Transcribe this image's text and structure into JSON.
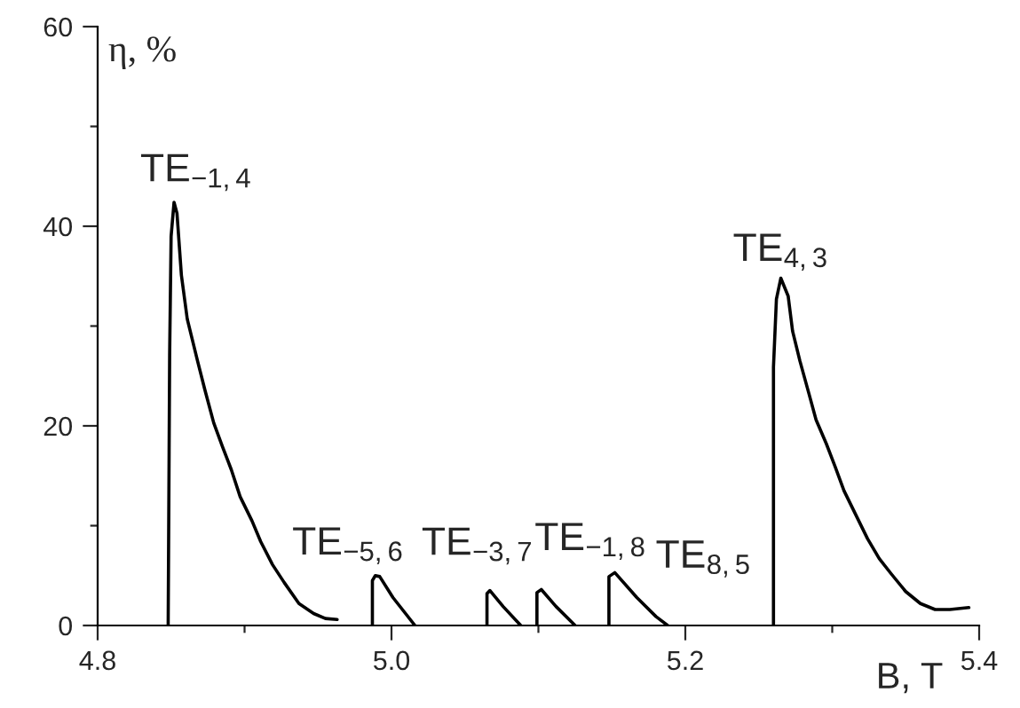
{
  "chart_data": {
    "type": "line",
    "xlabel": "B, T",
    "ylabel": "η, %",
    "xlim": [
      4.8,
      5.4
    ],
    "ylim": [
      0,
      60
    ],
    "xticks": [
      {
        "value": 4.8,
        "label": "4.8"
      },
      {
        "value": 4.9,
        "label": null
      },
      {
        "value": 5.0,
        "label": "5.0"
      },
      {
        "value": 5.1,
        "label": null
      },
      {
        "value": 5.2,
        "label": "5.2"
      },
      {
        "value": 5.3,
        "label": null
      },
      {
        "value": 5.4,
        "label": "5.4"
      }
    ],
    "yticks": [
      0,
      {
        "value": 10,
        "label": null
      },
      20,
      {
        "value": 30,
        "label": null
      },
      40,
      {
        "value": 50,
        "label": null
      },
      60
    ],
    "series": [
      {
        "color": "#000000",
        "x": [
          4.848,
          4.849,
          4.85,
          4.852,
          4.854,
          4.857,
          4.861,
          4.868,
          4.873,
          4.879,
          4.885,
          4.891,
          4.897,
          4.905,
          4.911,
          4.919,
          4.927,
          4.937,
          4.947,
          4.955,
          4.963
        ],
        "values": [
          0,
          27.1,
          39.0,
          42.4,
          41.3,
          35.1,
          30.7,
          26.5,
          23.6,
          20.3,
          17.9,
          15.6,
          12.9,
          10.5,
          8.4,
          6.1,
          4.3,
          2.2,
          1.2,
          0.7,
          0.6
        ]
      },
      {
        "color": "#000000",
        "x": [
          4.987,
          4.987,
          4.989,
          4.992,
          5.001,
          5.016
        ],
        "values": [
          0,
          4.5,
          5.0,
          4.9,
          2.8,
          0
        ]
      },
      {
        "color": "#000000",
        "x": [
          5.065,
          5.065,
          5.067,
          5.076,
          5.088
        ],
        "values": [
          0,
          3.2,
          3.5,
          1.9,
          0
        ]
      },
      {
        "color": "#000000",
        "x": [
          5.099,
          5.099,
          5.102,
          5.112,
          5.125
        ],
        "values": [
          0,
          3.3,
          3.6,
          1.9,
          0
        ]
      },
      {
        "color": "#000000",
        "x": [
          5.148,
          5.148,
          5.152,
          5.167,
          5.18,
          5.188
        ],
        "values": [
          0,
          4.9,
          5.3,
          2.8,
          0.9,
          0
        ]
      },
      {
        "color": "#000000",
        "x": [
          5.26,
          5.26,
          5.262,
          5.265,
          5.27,
          5.273,
          5.278,
          5.284,
          5.289,
          5.296,
          5.302,
          5.308,
          5.316,
          5.324,
          5.332,
          5.34,
          5.35,
          5.36,
          5.37,
          5.38,
          5.393
        ],
        "values": [
          0,
          25.9,
          32.7,
          34.8,
          33.0,
          29.5,
          26.5,
          23.3,
          20.6,
          18.2,
          15.9,
          13.5,
          11.1,
          8.7,
          6.7,
          5.2,
          3.4,
          2.2,
          1.6,
          1.6,
          1.8
        ]
      }
    ],
    "annotations": [
      {
        "text": "TE$_{−1,4}$",
        "x": 4.852,
        "y": 42.4
      },
      {
        "text": "TE$_{−5,6}$",
        "x": 4.989,
        "y": 5.0
      },
      {
        "text": "TE$_{−3,7}$",
        "x": 5.067,
        "y": 3.5
      },
      {
        "text": "TE$_{−1,8}$",
        "x": 5.102,
        "y": 3.6
      },
      {
        "text": "TE$_{8,5}$",
        "x": 5.152,
        "y": 5.3
      },
      {
        "text": "TE$_{4,3}$",
        "x": 5.265,
        "y": 34.8
      }
    ]
  }
}
